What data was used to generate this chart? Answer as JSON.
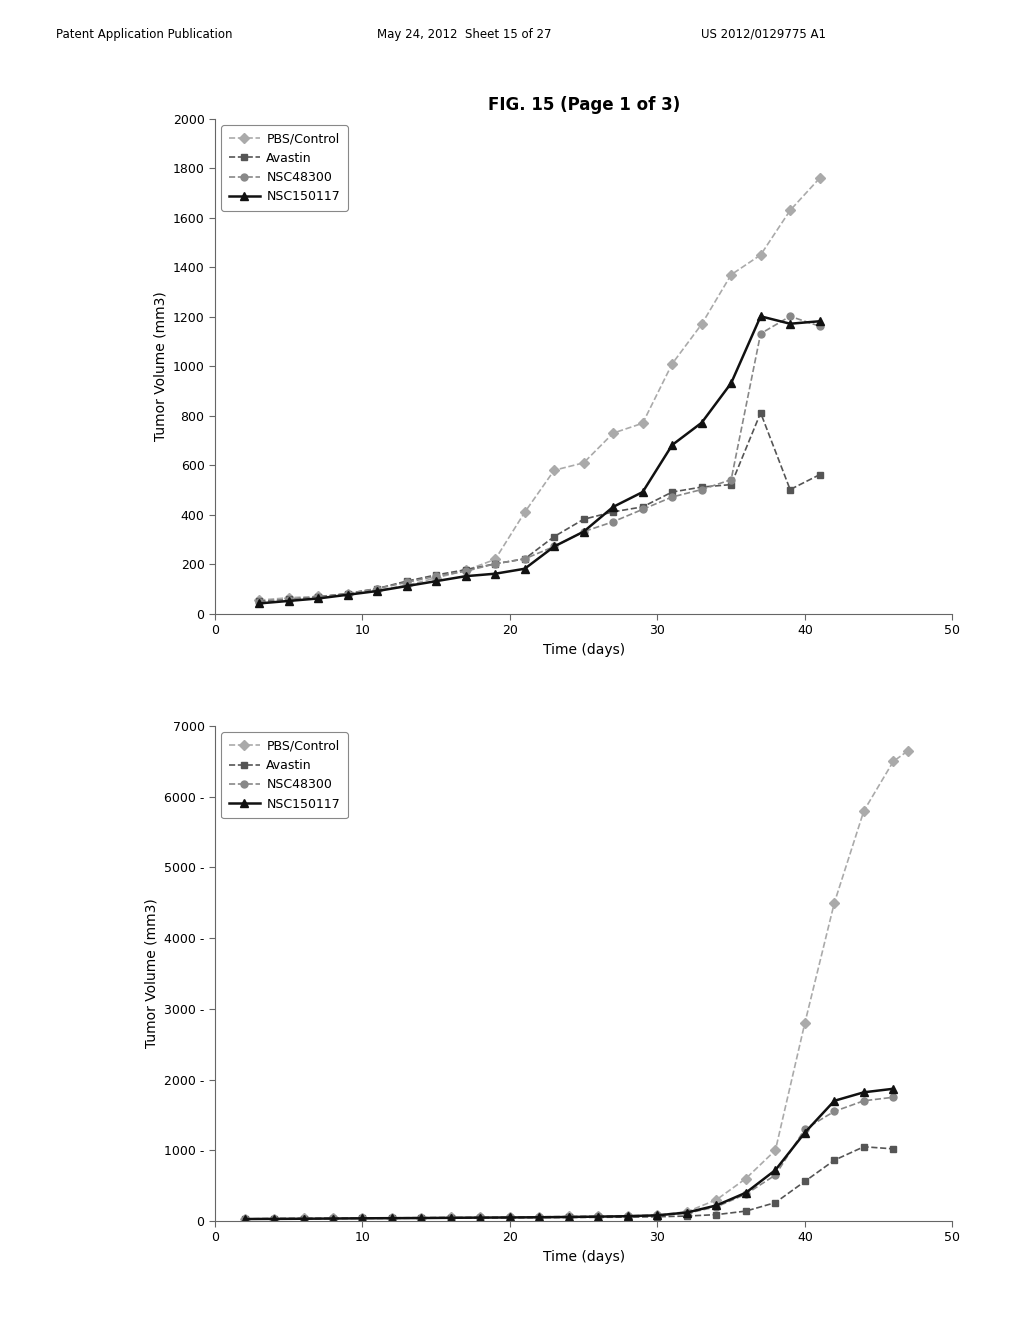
{
  "title": "FIG. 15 (Page 1 of 3)",
  "header_left": "Patent Application Publication",
  "header_mid": "May 24, 2012  Sheet 15 of 27",
  "header_right": "US 2012/0129775 A1",
  "chart1": {
    "xlabel": "Time (days)",
    "ylabel": "Tumor Volume (mm3)",
    "xlim": [
      0,
      50
    ],
    "ylim": [
      0,
      2000
    ],
    "yticks": [
      0,
      200,
      400,
      600,
      800,
      1000,
      1200,
      1400,
      1600,
      1800,
      2000
    ],
    "xticks": [
      0,
      10,
      20,
      30,
      40,
      50
    ],
    "series": {
      "PBS/Control": {
        "x": [
          3,
          5,
          7,
          9,
          11,
          13,
          15,
          17,
          19,
          21,
          23,
          25,
          27,
          29,
          31,
          33,
          35,
          37,
          39,
          41
        ],
        "y": [
          55,
          65,
          70,
          80,
          95,
          115,
          145,
          175,
          220,
          410,
          580,
          610,
          730,
          770,
          1010,
          1170,
          1370,
          1450,
          1630,
          1760
        ],
        "color": "#aaaaaa",
        "marker": "D",
        "linestyle": "--",
        "linewidth": 1.2,
        "markersize": 5
      },
      "Avastin": {
        "x": [
          3,
          5,
          7,
          9,
          11,
          13,
          15,
          17,
          19,
          21,
          23,
          25,
          27,
          29,
          31,
          33,
          35,
          37,
          39,
          41
        ],
        "y": [
          50,
          58,
          68,
          82,
          102,
          132,
          157,
          178,
          202,
          222,
          312,
          382,
          412,
          432,
          492,
          512,
          522,
          812,
          502,
          562
        ],
        "color": "#555555",
        "marker": "s",
        "linestyle": "--",
        "linewidth": 1.2,
        "markersize": 5
      },
      "NSC48300": {
        "x": [
          3,
          5,
          7,
          9,
          11,
          13,
          15,
          17,
          19,
          21,
          23,
          25,
          27,
          29,
          31,
          33,
          35,
          37,
          39,
          41
        ],
        "y": [
          47,
          57,
          67,
          82,
          102,
          127,
          152,
          172,
          202,
          222,
          272,
          332,
          372,
          422,
          472,
          502,
          542,
          1132,
          1202,
          1162
        ],
        "color": "#888888",
        "marker": "o",
        "linestyle": "--",
        "linewidth": 1.2,
        "markersize": 5
      },
      "NSC150117": {
        "x": [
          3,
          5,
          7,
          9,
          11,
          13,
          15,
          17,
          19,
          21,
          23,
          25,
          27,
          29,
          31,
          33,
          35,
          37,
          39,
          41
        ],
        "y": [
          42,
          52,
          62,
          77,
          92,
          112,
          132,
          152,
          162,
          182,
          272,
          332,
          432,
          492,
          682,
          772,
          932,
          1202,
          1172,
          1182
        ],
        "color": "#111111",
        "marker": "^",
        "linestyle": "-",
        "linewidth": 1.8,
        "markersize": 6
      }
    }
  },
  "chart2": {
    "xlabel": "Time (days)",
    "ylabel": "Tumor Volume (mm3)",
    "xlim": [
      0,
      50
    ],
    "ylim": [
      0,
      7000
    ],
    "yticks": [
      0,
      1000,
      2000,
      3000,
      4000,
      5000,
      6000,
      7000
    ],
    "ytick_labels": [
      "0",
      "1000 -",
      "2000 -",
      "3000 -",
      "4000 -",
      "5000 -",
      "6000 -",
      "7000"
    ],
    "xticks": [
      0,
      10,
      20,
      30,
      40,
      50
    ],
    "series": {
      "PBS/Control": {
        "x": [
          2,
          4,
          6,
          8,
          10,
          12,
          14,
          16,
          18,
          20,
          22,
          24,
          26,
          28,
          30,
          32,
          34,
          36,
          38,
          40,
          42,
          44,
          46,
          47
        ],
        "y": [
          30,
          35,
          38,
          40,
          43,
          45,
          48,
          50,
          52,
          55,
          60,
          65,
          70,
          75,
          85,
          130,
          300,
          600,
          1000,
          2800,
          4500,
          5800,
          6500,
          6650
        ],
        "color": "#aaaaaa",
        "marker": "D",
        "linestyle": "--",
        "linewidth": 1.2,
        "markersize": 5
      },
      "Avastin": {
        "x": [
          2,
          4,
          6,
          8,
          10,
          12,
          14,
          16,
          18,
          20,
          22,
          24,
          26,
          28,
          30,
          32,
          34,
          36,
          38,
          40,
          42,
          44,
          46
        ],
        "y": [
          30,
          32,
          33,
          35,
          37,
          38,
          40,
          42,
          44,
          46,
          48,
          50,
          52,
          55,
          60,
          70,
          90,
          140,
          260,
          560,
          860,
          1050,
          1020
        ],
        "color": "#555555",
        "marker": "s",
        "linestyle": "--",
        "linewidth": 1.2,
        "markersize": 5
      },
      "NSC48300": {
        "x": [
          2,
          4,
          6,
          8,
          10,
          12,
          14,
          16,
          18,
          20,
          22,
          24,
          26,
          28,
          30,
          32,
          34,
          36,
          38,
          40,
          42,
          44,
          46
        ],
        "y": [
          30,
          33,
          35,
          38,
          42,
          44,
          46,
          48,
          50,
          53,
          56,
          60,
          64,
          68,
          80,
          110,
          200,
          380,
          650,
          1300,
          1550,
          1700,
          1750
        ],
        "color": "#888888",
        "marker": "o",
        "linestyle": "--",
        "linewidth": 1.2,
        "markersize": 5
      },
      "NSC150117": {
        "x": [
          2,
          4,
          6,
          8,
          10,
          12,
          14,
          16,
          18,
          20,
          22,
          24,
          26,
          28,
          30,
          32,
          34,
          36,
          38,
          40,
          42,
          44,
          46
        ],
        "y": [
          28,
          30,
          32,
          35,
          38,
          40,
          42,
          45,
          48,
          50,
          53,
          57,
          62,
          68,
          80,
          120,
          220,
          400,
          720,
          1250,
          1700,
          1820,
          1870
        ],
        "color": "#111111",
        "marker": "^",
        "linestyle": "-",
        "linewidth": 1.8,
        "markersize": 6
      }
    }
  },
  "background_color": "#ffffff",
  "font_family": "DejaVu Sans"
}
